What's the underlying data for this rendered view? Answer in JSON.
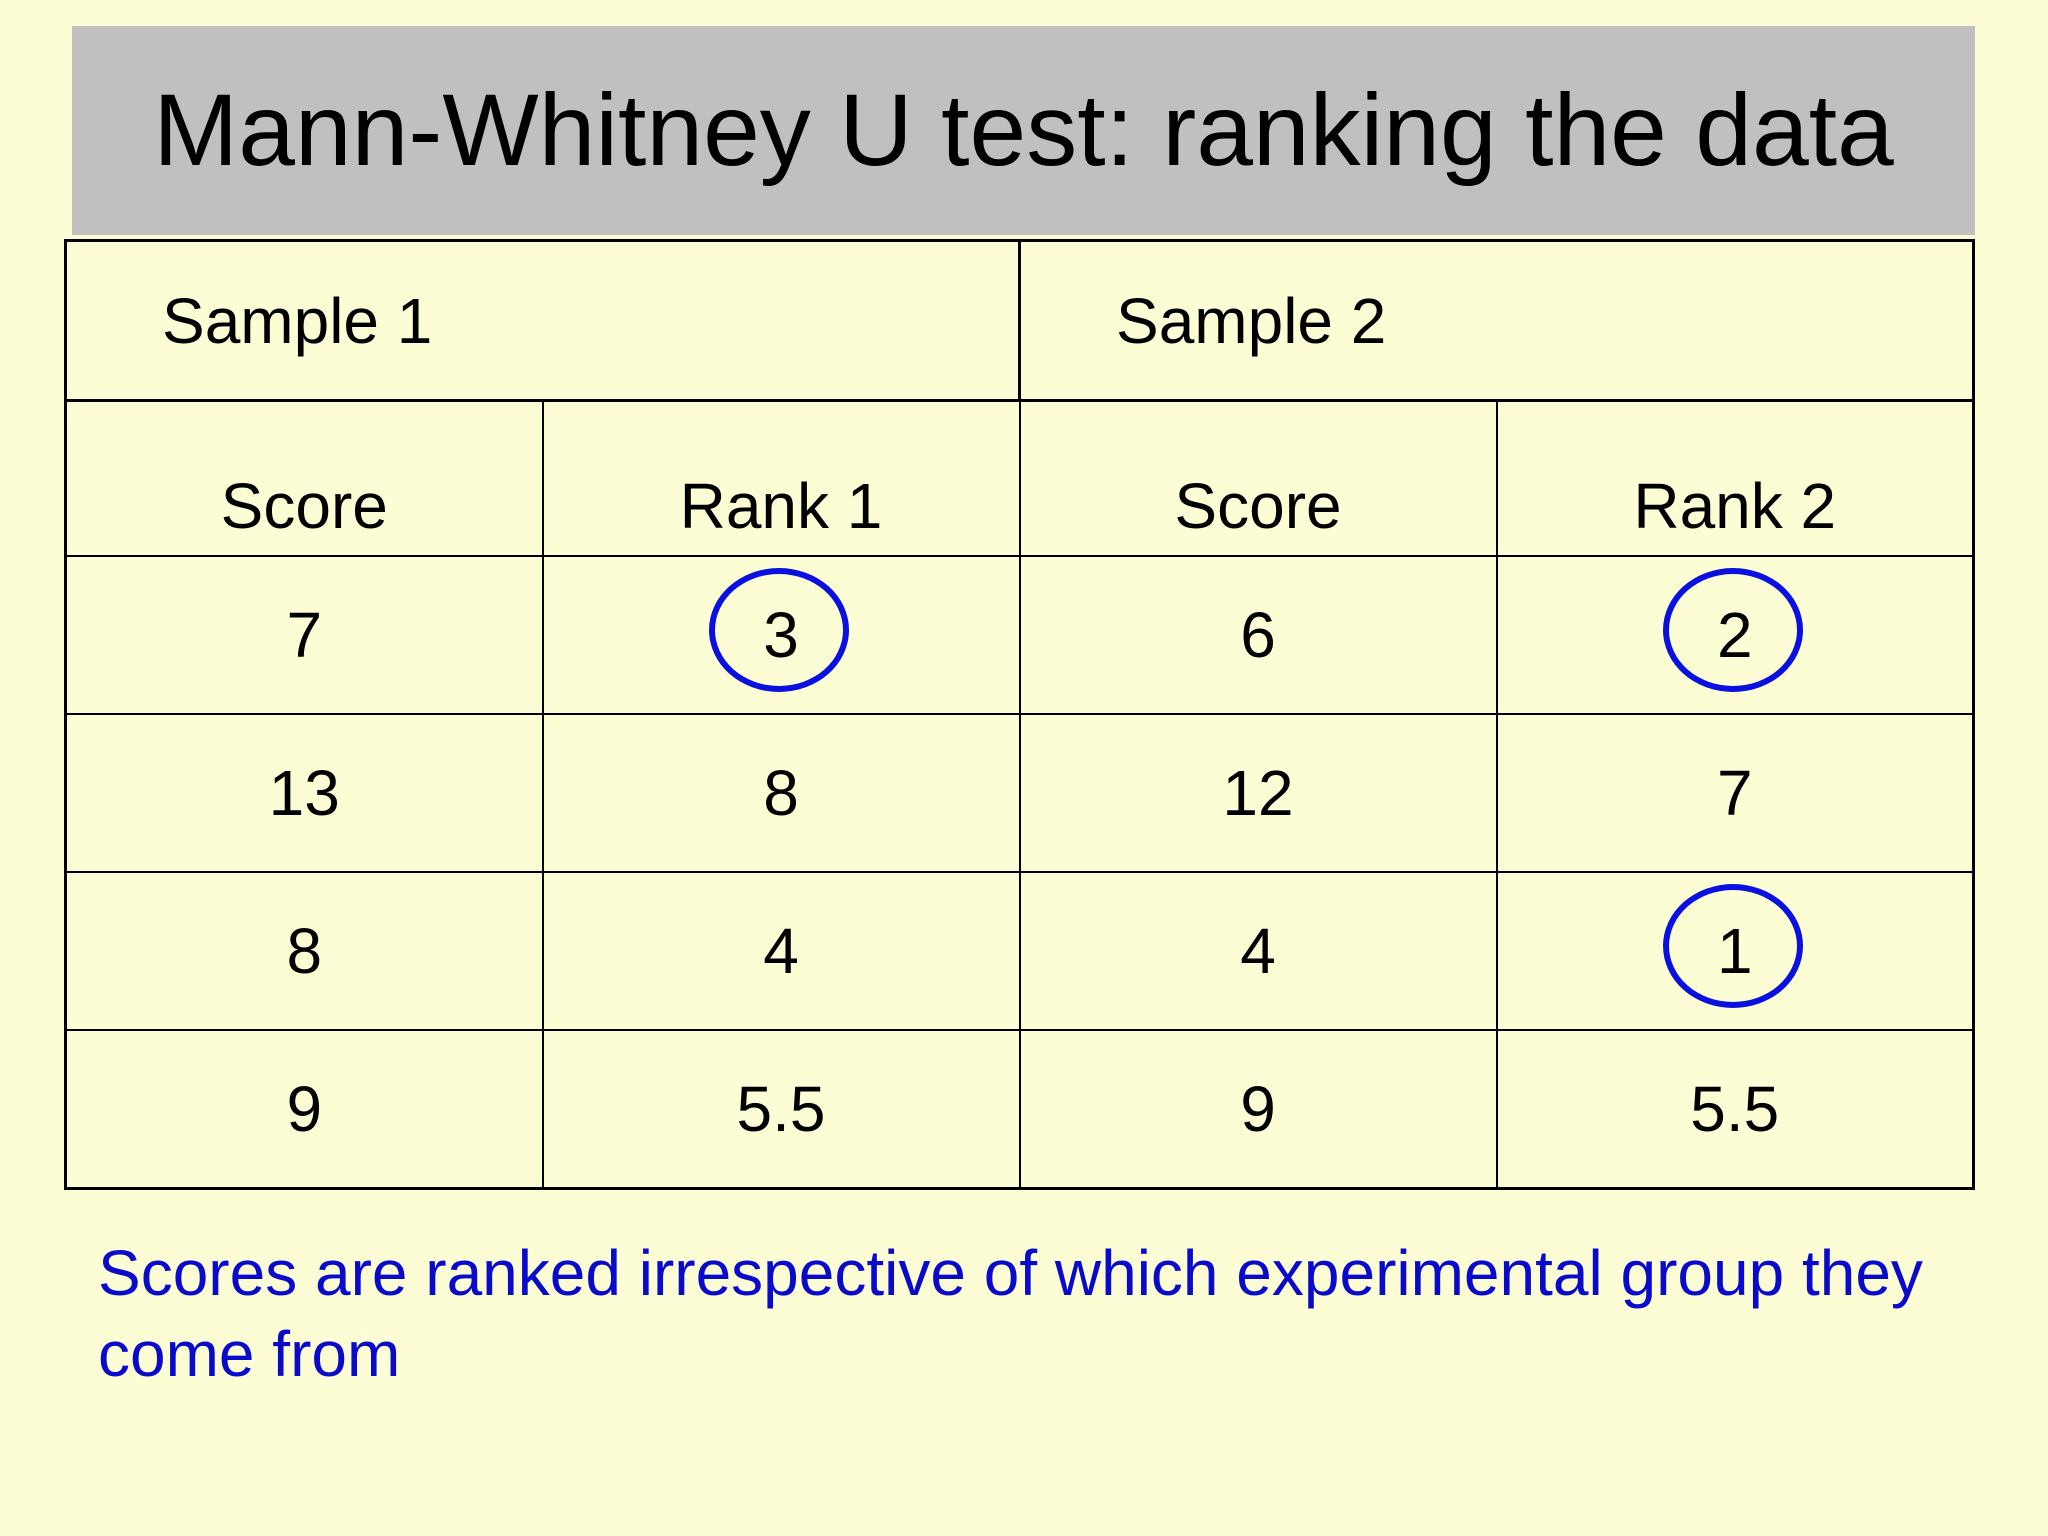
{
  "title": "Mann-Whitney U test: ranking the data",
  "table": {
    "groups": [
      "Sample 1",
      "Sample 2"
    ],
    "columns": [
      "Score",
      "Rank 1",
      "Score",
      "Rank 2"
    ],
    "rows": [
      [
        7,
        3,
        6,
        2
      ],
      [
        13,
        8,
        12,
        7
      ],
      [
        8,
        4,
        4,
        1
      ],
      [
        9,
        5.5,
        9,
        5.5
      ]
    ]
  },
  "note": "Scores are ranked irrespective of which experimental group they come from"
}
